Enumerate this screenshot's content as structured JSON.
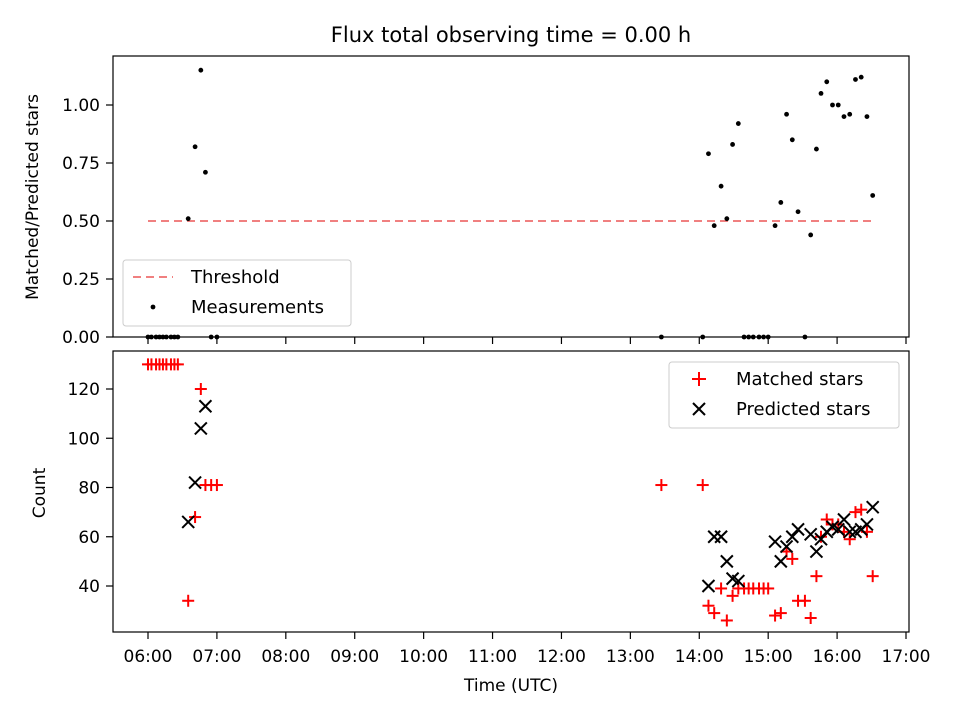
{
  "chart_data": [
    {
      "type": "scatter",
      "title": "Flux total observing time = 0.00 h",
      "xlabel": "",
      "ylabel": "Matched/Predicted stars",
      "xlim": [
        "05:45",
        "17:05"
      ],
      "ylim": [
        0,
        1.2
      ],
      "yticks": [
        "0.00",
        "0.25",
        "0.50",
        "0.75",
        "1.00"
      ],
      "grid": false,
      "legend_position": "lower-left",
      "threshold": {
        "name": "Threshold",
        "value": 0.5,
        "x_start": "06:00",
        "x_end": "16:30",
        "color": "#f08080",
        "style": "dashed"
      },
      "series": [
        {
          "name": "Measurements",
          "marker": "dot",
          "color": "#000000",
          "points": [
            [
              "06:00",
              0
            ],
            [
              "06:03",
              0
            ],
            [
              "06:07",
              0
            ],
            [
              "06:10",
              0
            ],
            [
              "06:13",
              0
            ],
            [
              "06:16",
              0
            ],
            [
              "06:20",
              0
            ],
            [
              "06:23",
              0
            ],
            [
              "06:26",
              0
            ],
            [
              "06:35",
              0.51
            ],
            [
              "06:41",
              0.82
            ],
            [
              "06:46",
              1.15
            ],
            [
              "06:50",
              0.71
            ],
            [
              "06:55",
              0
            ],
            [
              "07:00",
              0
            ],
            [
              "13:27",
              0
            ],
            [
              "14:03",
              0
            ],
            [
              "14:08",
              0.79
            ],
            [
              "14:13",
              0.48
            ],
            [
              "14:19",
              0.65
            ],
            [
              "14:24",
              0.51
            ],
            [
              "14:29",
              0.83
            ],
            [
              "14:34",
              0.92
            ],
            [
              "14:39",
              0
            ],
            [
              "14:43",
              0
            ],
            [
              "14:47",
              0
            ],
            [
              "14:52",
              0
            ],
            [
              "14:56",
              0
            ],
            [
              "15:00",
              0
            ],
            [
              "15:06",
              0.48
            ],
            [
              "15:11",
              0.58
            ],
            [
              "15:16",
              0.96
            ],
            [
              "15:21",
              0.85
            ],
            [
              "15:26",
              0.54
            ],
            [
              "15:32",
              0
            ],
            [
              "15:37",
              0.44
            ],
            [
              "15:42",
              0.81
            ],
            [
              "15:46",
              1.05
            ],
            [
              "15:51",
              1.1
            ],
            [
              "15:56",
              1.0
            ],
            [
              "16:01",
              1.0
            ],
            [
              "16:06",
              0.95
            ],
            [
              "16:11",
              0.96
            ],
            [
              "16:16",
              1.11
            ],
            [
              "16:21",
              1.12
            ],
            [
              "16:26",
              0.95
            ],
            [
              "16:31",
              0.61
            ]
          ]
        }
      ]
    },
    {
      "type": "scatter",
      "title": "",
      "xlabel": "Time (UTC)",
      "ylabel": "Count",
      "xlim": [
        "05:45",
        "17:05"
      ],
      "ylim": [
        20,
        136
      ],
      "yticks": [
        "40",
        "60",
        "80",
        "100",
        "120"
      ],
      "xticks": [
        "06:00",
        "07:00",
        "08:00",
        "09:00",
        "10:00",
        "11:00",
        "12:00",
        "13:00",
        "14:00",
        "15:00",
        "16:00",
        "17:00"
      ],
      "grid": false,
      "legend_position": "top-right",
      "series": [
        {
          "name": "Matched stars",
          "marker": "plus",
          "color": "#ff0000",
          "points": [
            [
              "06:00",
              130
            ],
            [
              "06:03",
              130
            ],
            [
              "06:07",
              130
            ],
            [
              "06:10",
              130
            ],
            [
              "06:13",
              130
            ],
            [
              "06:16",
              130
            ],
            [
              "06:20",
              130
            ],
            [
              "06:23",
              130
            ],
            [
              "06:26",
              130
            ],
            [
              "06:35",
              34
            ],
            [
              "06:41",
              68
            ],
            [
              "06:46",
              120
            ],
            [
              "06:50",
              81
            ],
            [
              "06:55",
              81
            ],
            [
              "07:00",
              81
            ],
            [
              "13:27",
              81
            ],
            [
              "14:03",
              81
            ],
            [
              "14:08",
              32
            ],
            [
              "14:13",
              29
            ],
            [
              "14:19",
              39
            ],
            [
              "14:24",
              26
            ],
            [
              "14:29",
              36
            ],
            [
              "14:34",
              39
            ],
            [
              "14:39",
              39
            ],
            [
              "14:43",
              39
            ],
            [
              "14:47",
              39
            ],
            [
              "14:52",
              39
            ],
            [
              "14:56",
              39
            ],
            [
              "15:00",
              39
            ],
            [
              "15:06",
              28
            ],
            [
              "15:11",
              29
            ],
            [
              "15:16",
              54
            ],
            [
              "15:21",
              51
            ],
            [
              "15:26",
              34
            ],
            [
              "15:32",
              34
            ],
            [
              "15:37",
              27
            ],
            [
              "15:42",
              44
            ],
            [
              "15:46",
              60
            ],
            [
              "15:51",
              67
            ],
            [
              "15:56",
              65
            ],
            [
              "16:01",
              65
            ],
            [
              "16:06",
              62
            ],
            [
              "16:11",
              59
            ],
            [
              "16:16",
              70
            ],
            [
              "16:21",
              71
            ],
            [
              "16:26",
              62
            ],
            [
              "16:31",
              44
            ]
          ]
        },
        {
          "name": "Predicted stars",
          "marker": "cross",
          "color": "#000000",
          "points": [
            [
              "06:35",
              66
            ],
            [
              "06:41",
              82
            ],
            [
              "06:46",
              104
            ],
            [
              "06:50",
              113
            ],
            [
              "14:08",
              40
            ],
            [
              "14:13",
              60
            ],
            [
              "14:19",
              60
            ],
            [
              "14:24",
              50
            ],
            [
              "14:29",
              43
            ],
            [
              "14:34",
              42
            ],
            [
              "15:06",
              58
            ],
            [
              "15:11",
              50
            ],
            [
              "15:16",
              56
            ],
            [
              "15:21",
              60
            ],
            [
              "15:26",
              63
            ],
            [
              "15:37",
              61
            ],
            [
              "15:42",
              54
            ],
            [
              "15:46",
              59
            ],
            [
              "15:51",
              62
            ],
            [
              "15:56",
              64
            ],
            [
              "16:01",
              63
            ],
            [
              "16:06",
              67
            ],
            [
              "16:11",
              62
            ],
            [
              "16:16",
              62
            ],
            [
              "16:21",
              63
            ],
            [
              "16:26",
              65
            ],
            [
              "16:31",
              72
            ]
          ]
        }
      ]
    }
  ]
}
